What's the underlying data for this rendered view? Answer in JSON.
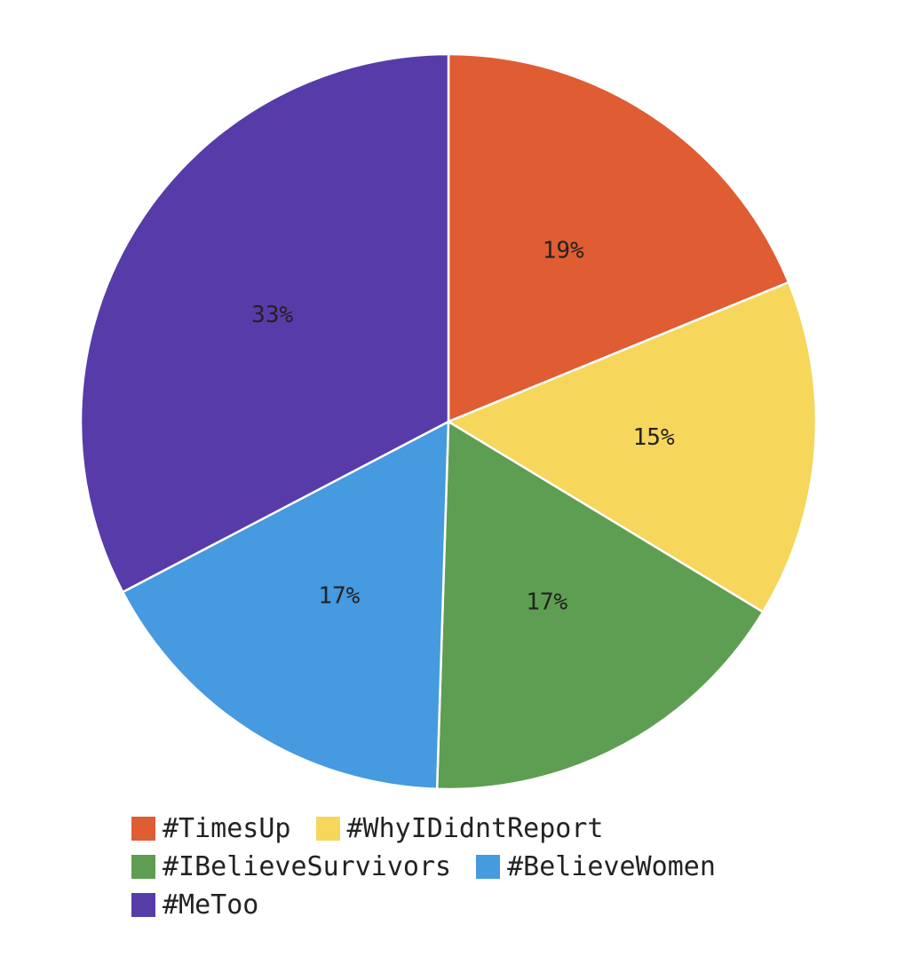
{
  "chart_data": {
    "type": "pie",
    "slices": [
      {
        "label": "#TimesUp",
        "value": 19,
        "display": "19%",
        "color": "#E05C33"
      },
      {
        "label": "#WhyIDidntReport",
        "value": 15,
        "display": "15%",
        "color": "#F6D65B"
      },
      {
        "label": "#IBelieveSurvivors",
        "value": 17,
        "display": "17%",
        "color": "#5E9E52"
      },
      {
        "label": "#BelieveWomen",
        "value": 17,
        "display": "17%",
        "color": "#459AE0"
      },
      {
        "label": "#MeToo",
        "value": 33,
        "display": "33%",
        "color": "#573CA9"
      }
    ],
    "start_angle": "12 o'clock",
    "direction": "clockwise",
    "legend_position": "bottom"
  },
  "legend": {
    "items": [
      {
        "label": "#TimesUp",
        "color": "#E05C33"
      },
      {
        "label": "#WhyIDidntReport",
        "color": "#F6D65B"
      },
      {
        "label": "#IBelieveSurvivors",
        "color": "#5E9E52"
      },
      {
        "label": "#BelieveWomen",
        "color": "#459AE0"
      },
      {
        "label": "#MeToo",
        "color": "#573CA9"
      }
    ]
  }
}
